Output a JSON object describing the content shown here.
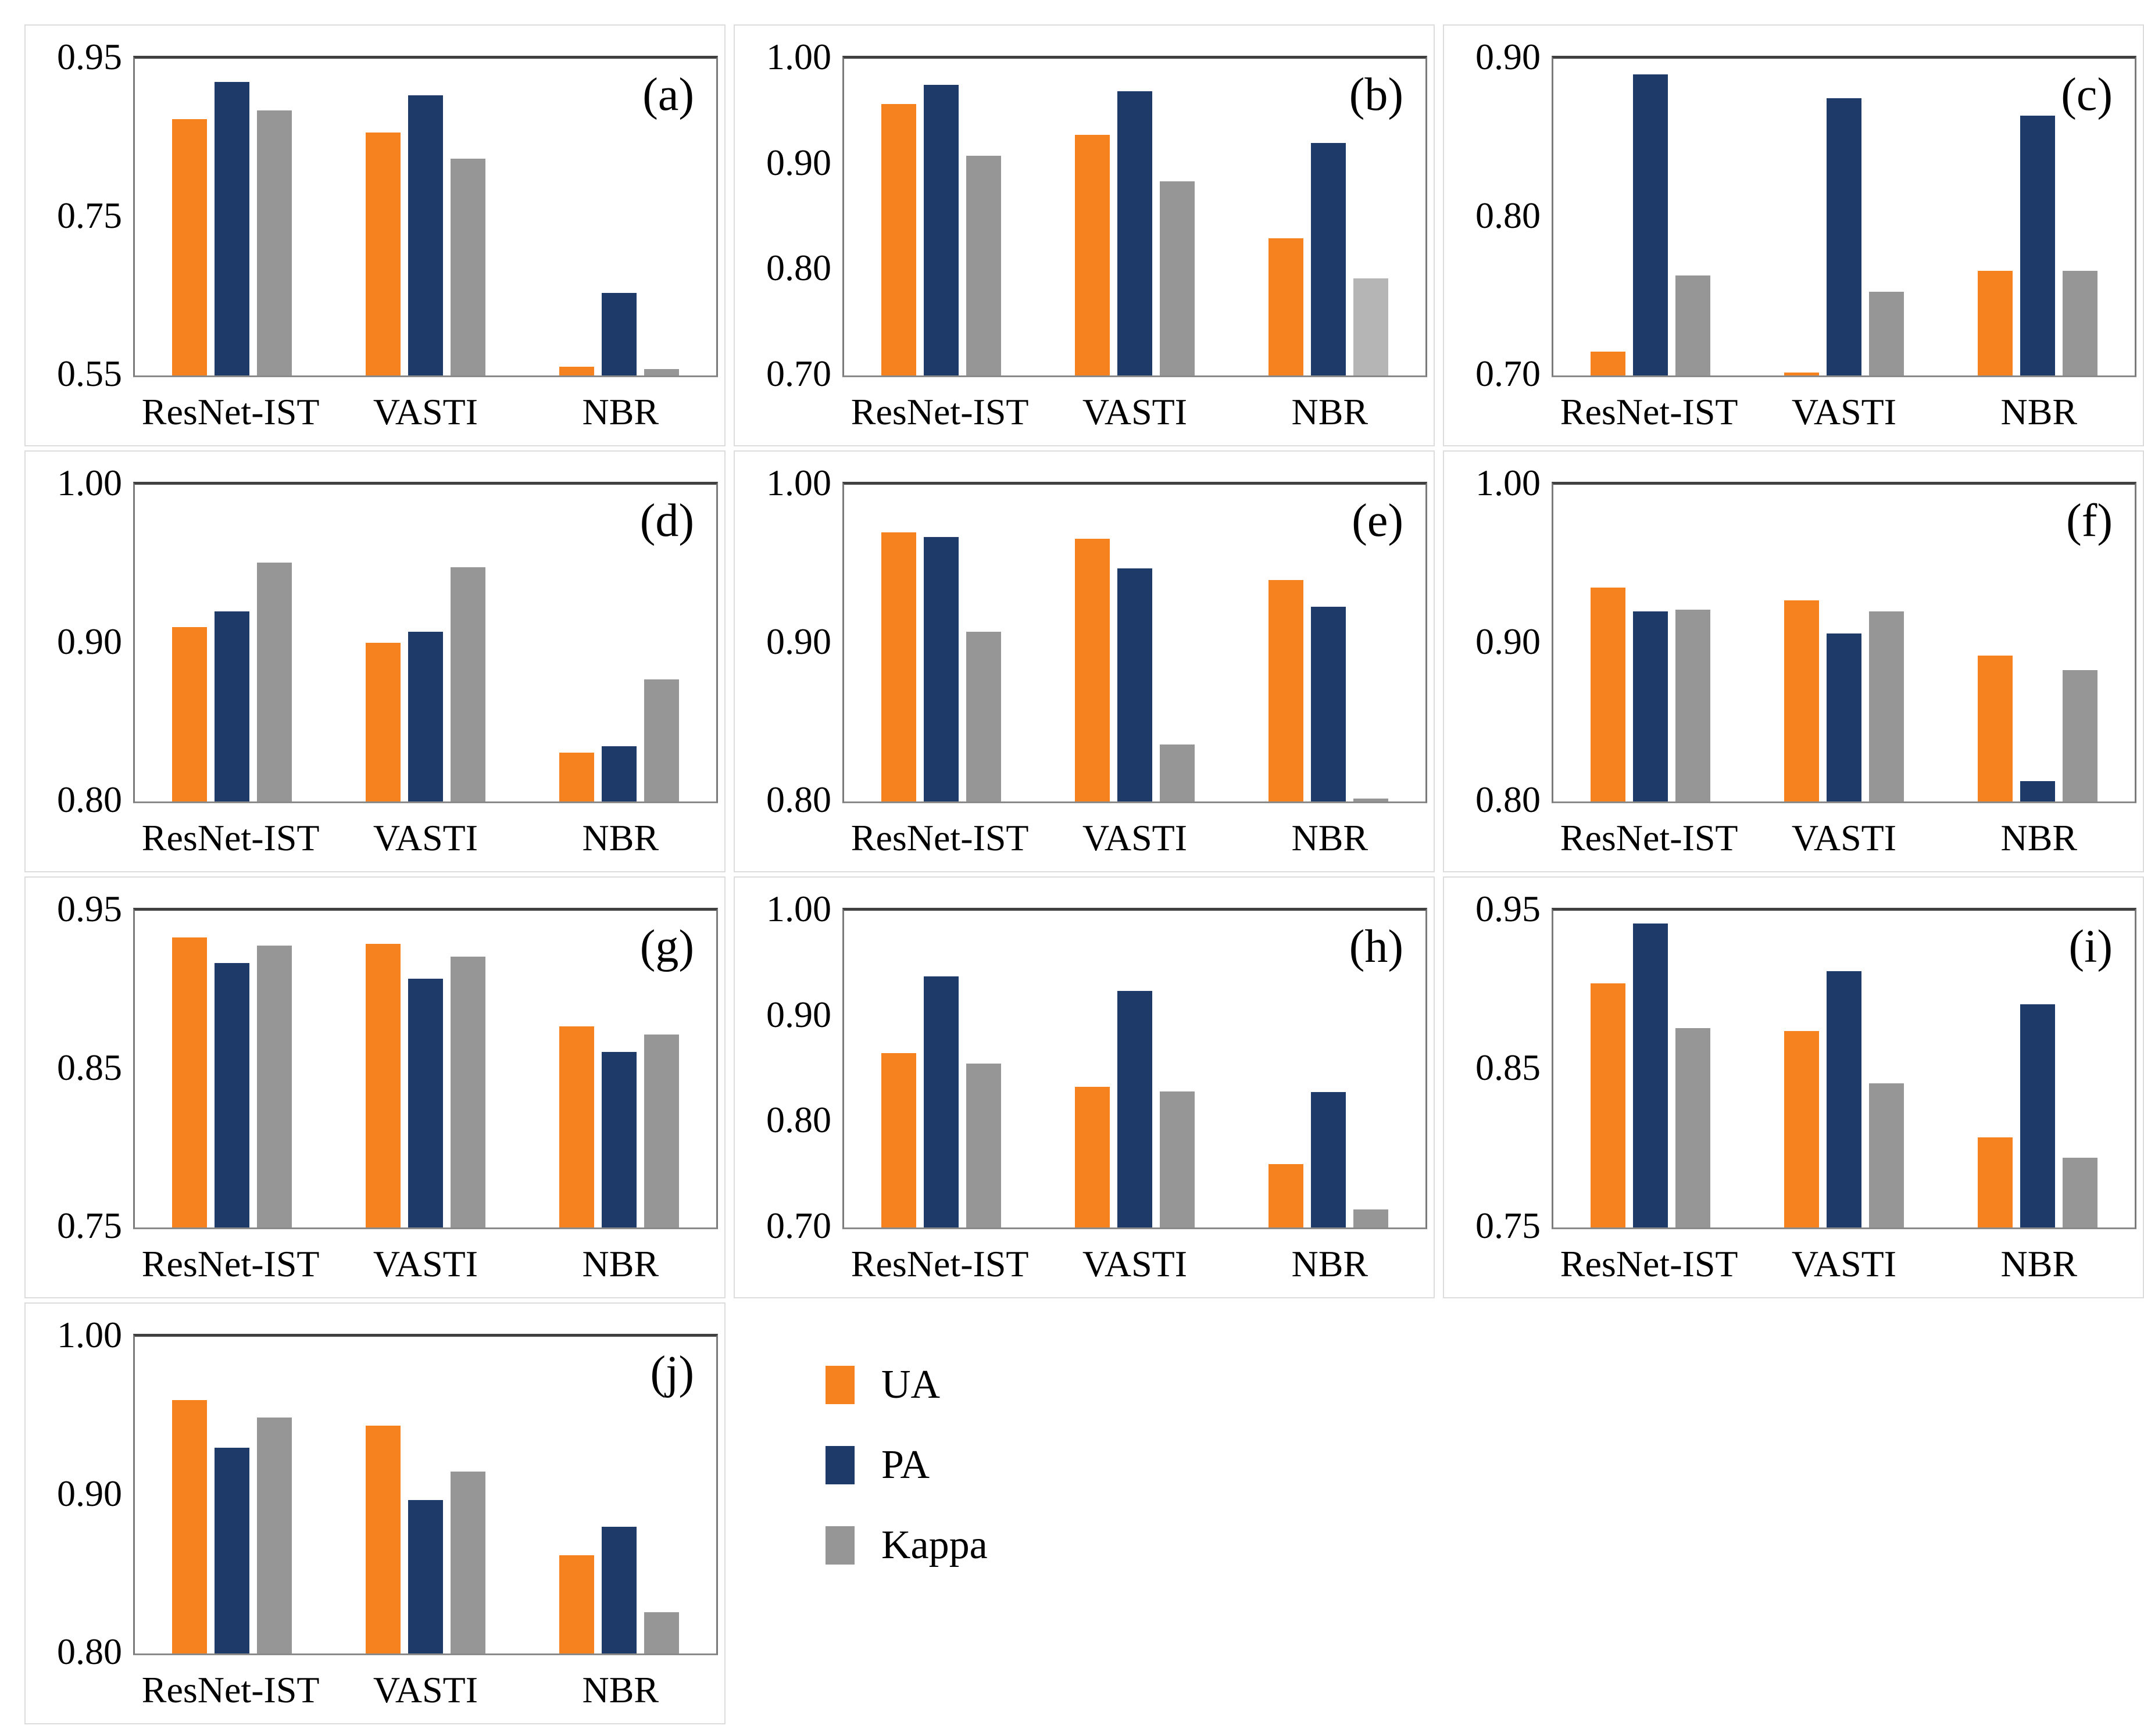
{
  "figure": {
    "description": "Grouped bar charts comparing UA, PA and Kappa for three methods across ten panels",
    "background": "#ffffff"
  },
  "colors": {
    "ua": "#f6821f",
    "pa": "#1e3a68",
    "kappa": "#969696",
    "kappa_light": "#b5b5b5",
    "plot_border": "#7a7a7a",
    "plot_border_top": "#404040",
    "panel_border": "#dcdcdc",
    "text": "#000000"
  },
  "legend": {
    "items": [
      {
        "label": "UA",
        "color": "#f6821f"
      },
      {
        "label": "PA",
        "color": "#1e3a68"
      },
      {
        "label": "Kappa",
        "color": "#969696"
      }
    ]
  },
  "chart_data": [
    {
      "type": "bar",
      "panel": "a",
      "panel_label": "(a)",
      "categories": [
        "ResNet-IST",
        "VASTI",
        "NBR"
      ],
      "ylim": [
        0.55,
        0.95
      ],
      "ytick_labels": [
        "0.95",
        "0.75",
        "0.55"
      ],
      "yticks": [
        0.95,
        0.75,
        0.55
      ],
      "series": [
        {
          "name": "UA",
          "values": [
            0.874,
            0.857,
            0.561
          ]
        },
        {
          "name": "PA",
          "values": [
            0.921,
            0.904,
            0.654
          ]
        },
        {
          "name": "Kappa",
          "values": [
            0.885,
            0.824,
            0.558
          ]
        }
      ]
    },
    {
      "type": "bar",
      "panel": "b",
      "panel_label": "(b)",
      "categories": [
        "ResNet-IST",
        "VASTI",
        "NBR"
      ],
      "ylim": [
        0.7,
        1.0
      ],
      "ytick_labels": [
        "1.00",
        "0.90",
        "0.80",
        "0.70"
      ],
      "yticks": [
        1.0,
        0.9,
        0.8,
        0.7
      ],
      "series": [
        {
          "name": "UA",
          "values": [
            0.957,
            0.928,
            0.83
          ]
        },
        {
          "name": "PA",
          "values": [
            0.975,
            0.969,
            0.92
          ]
        },
        {
          "name": "Kappa",
          "values": [
            0.908,
            0.884,
            0.792
          ]
        }
      ],
      "overrides": [
        {
          "series_index": 2,
          "category_index": 2,
          "color": "#b5b5b5"
        }
      ]
    },
    {
      "type": "bar",
      "panel": "c",
      "panel_label": "(c)",
      "categories": [
        "ResNet-IST",
        "VASTI",
        "NBR"
      ],
      "ylim": [
        0.7,
        0.9
      ],
      "ytick_labels": [
        "0.90",
        "0.80",
        "0.70"
      ],
      "yticks": [
        0.9,
        0.8,
        0.7
      ],
      "series": [
        {
          "name": "UA",
          "values": [
            0.715,
            0.702,
            0.766
          ]
        },
        {
          "name": "PA",
          "values": [
            0.89,
            0.875,
            0.864
          ]
        },
        {
          "name": "Kappa",
          "values": [
            0.763,
            0.753,
            0.766
          ]
        }
      ]
    },
    {
      "type": "bar",
      "panel": "d",
      "panel_label": "(d)",
      "categories": [
        "ResNet-IST",
        "VASTI",
        "NBR"
      ],
      "ylim": [
        0.8,
        1.0
      ],
      "ytick_labels": [
        "1.00",
        "0.90",
        "0.80"
      ],
      "yticks": [
        1.0,
        0.9,
        0.8
      ],
      "series": [
        {
          "name": "UA",
          "values": [
            0.91,
            0.9,
            0.831
          ]
        },
        {
          "name": "PA",
          "values": [
            0.92,
            0.907,
            0.835
          ]
        },
        {
          "name": "Kappa",
          "values": [
            0.951,
            0.948,
            0.877
          ]
        }
      ]
    },
    {
      "type": "bar",
      "panel": "e",
      "panel_label": "(e)",
      "categories": [
        "ResNet-IST",
        "VASTI",
        "NBR"
      ],
      "ylim": [
        0.8,
        1.0
      ],
      "ytick_labels": [
        "1.00",
        "0.90",
        "0.80"
      ],
      "yticks": [
        1.0,
        0.9,
        0.8
      ],
      "series": [
        {
          "name": "UA",
          "values": [
            0.97,
            0.966,
            0.94
          ]
        },
        {
          "name": "PA",
          "values": [
            0.967,
            0.947,
            0.923
          ]
        },
        {
          "name": "Kappa",
          "values": [
            0.907,
            0.836,
            0.802
          ]
        }
      ]
    },
    {
      "type": "bar",
      "panel": "f",
      "panel_label": "(f)",
      "categories": [
        "ResNet-IST",
        "VASTI",
        "NBR"
      ],
      "ylim": [
        0.8,
        1.0
      ],
      "ytick_labels": [
        "1.00",
        "0.90",
        "0.80"
      ],
      "yticks": [
        1.0,
        0.9,
        0.8
      ],
      "series": [
        {
          "name": "UA",
          "values": [
            0.935,
            0.927,
            0.892
          ]
        },
        {
          "name": "PA",
          "values": [
            0.92,
            0.906,
            0.813
          ]
        },
        {
          "name": "Kappa",
          "values": [
            0.921,
            0.92,
            0.883
          ]
        }
      ]
    },
    {
      "type": "bar",
      "panel": "g",
      "panel_label": "(g)",
      "categories": [
        "ResNet-IST",
        "VASTI",
        "NBR"
      ],
      "ylim": [
        0.75,
        0.95
      ],
      "ytick_labels": [
        "0.95",
        "0.85",
        "0.75"
      ],
      "yticks": [
        0.95,
        0.85,
        0.75
      ],
      "series": [
        {
          "name": "UA",
          "values": [
            0.933,
            0.929,
            0.877
          ]
        },
        {
          "name": "PA",
          "values": [
            0.917,
            0.907,
            0.861
          ]
        },
        {
          "name": "Kappa",
          "values": [
            0.928,
            0.921,
            0.872
          ]
        }
      ]
    },
    {
      "type": "bar",
      "panel": "h",
      "panel_label": "(h)",
      "categories": [
        "ResNet-IST",
        "VASTI",
        "NBR"
      ],
      "ylim": [
        0.7,
        1.0
      ],
      "ytick_labels": [
        "1.00",
        "0.90",
        "0.80",
        "0.70"
      ],
      "yticks": [
        1.0,
        0.9,
        0.8,
        0.7
      ],
      "series": [
        {
          "name": "UA",
          "values": [
            0.865,
            0.833,
            0.76
          ]
        },
        {
          "name": "PA",
          "values": [
            0.938,
            0.924,
            0.828
          ]
        },
        {
          "name": "Kappa",
          "values": [
            0.855,
            0.829,
            0.717
          ]
        }
      ]
    },
    {
      "type": "bar",
      "panel": "i",
      "panel_label": "(i)",
      "categories": [
        "ResNet-IST",
        "VASTI",
        "NBR"
      ],
      "ylim": [
        0.75,
        0.95
      ],
      "ytick_labels": [
        "0.95",
        "0.85",
        "0.75"
      ],
      "yticks": [
        0.95,
        0.85,
        0.75
      ],
      "series": [
        {
          "name": "UA",
          "values": [
            0.904,
            0.874,
            0.807
          ]
        },
        {
          "name": "PA",
          "values": [
            0.942,
            0.912,
            0.891
          ]
        },
        {
          "name": "Kappa",
          "values": [
            0.876,
            0.841,
            0.794
          ]
        }
      ]
    },
    {
      "type": "bar",
      "panel": "j",
      "panel_label": "(j)",
      "categories": [
        "ResNet-IST",
        "VASTI",
        "NBR"
      ],
      "ylim": [
        0.8,
        1.0
      ],
      "ytick_labels": [
        "1.00",
        "0.90",
        "0.80"
      ],
      "yticks": [
        1.0,
        0.9,
        0.8
      ],
      "series": [
        {
          "name": "UA",
          "values": [
            0.96,
            0.944,
            0.862
          ]
        },
        {
          "name": "PA",
          "values": [
            0.93,
            0.897,
            0.88
          ]
        },
        {
          "name": "Kappa",
          "values": [
            0.949,
            0.915,
            0.826
          ]
        }
      ]
    }
  ]
}
